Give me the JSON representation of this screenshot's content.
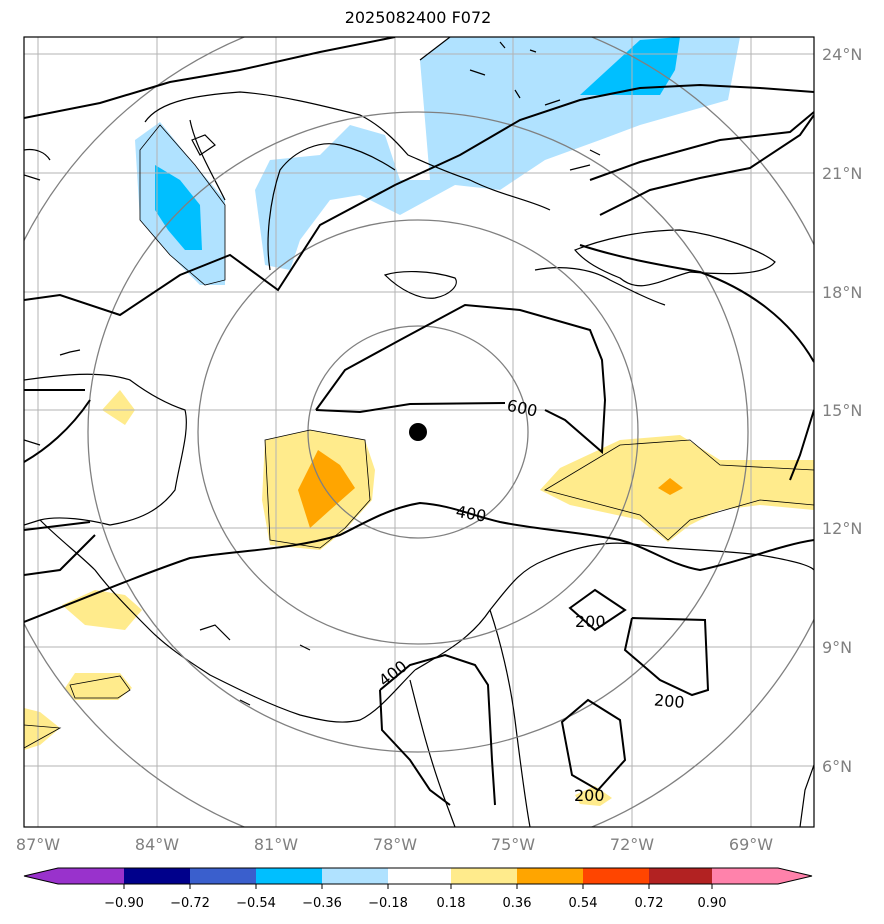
{
  "title": "2025082400 F072",
  "lat_labels": [
    "24°N",
    "21°N",
    "18°N",
    "15°N",
    "12°N",
    "9°N",
    "6°N"
  ],
  "lon_labels": [
    "87°W",
    "84°W",
    "81°W",
    "78°W",
    "75°W",
    "72°W",
    "69°W"
  ],
  "contour_labels": [
    "600",
    "400",
    "200",
    "200",
    "200",
    "400"
  ],
  "colorbar": {
    "tick_labels": [
      "−0.90",
      "−0.72",
      "−0.54",
      "−0.36",
      "−0.18",
      "0.18",
      "0.36",
      "0.54",
      "0.72",
      "0.90"
    ],
    "colors": [
      "#9932cc",
      "#00008b",
      "#3a5fcd",
      "#00bfff",
      "#b0e2ff",
      "#ffffff",
      "#ffeb8c",
      "#ffa500",
      "#ff4500",
      "#b22222",
      "#ff82ab"
    ]
  },
  "storm_center": {
    "lat": 14.5,
    "lon": -77.3
  }
}
